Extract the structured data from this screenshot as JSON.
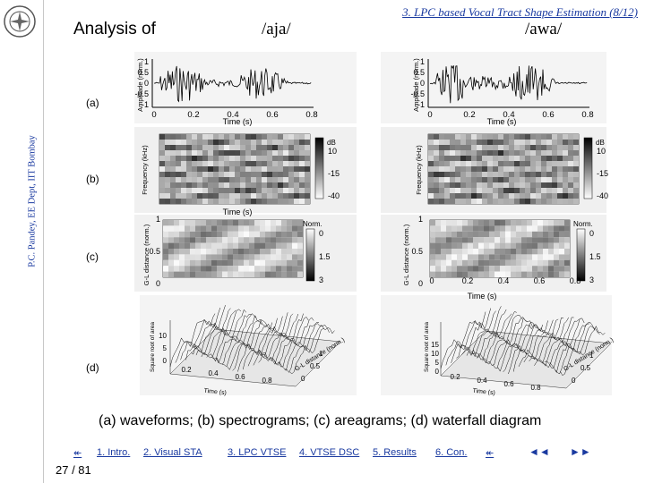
{
  "sidebar": {
    "author_line": "P.C. Pandey, EE Dept, IIT Bombay",
    "logo_icon": "iit-bombay-logo-icon"
  },
  "header": {
    "section_link": "3. LPC based Vocal Tract Shape Estimation (8/12)",
    "title": "Analysis of",
    "col_left": "/aja/",
    "col_right": "/awa/"
  },
  "rows": {
    "a": "(a)",
    "b": "(b)",
    "c": "(c)",
    "d": "(d)"
  },
  "axes": {
    "amp_label": "Amplitude (norm.)",
    "time_label": "Time (s)",
    "freq_label": "Frequency (kHz)",
    "gl_label": "G-L distance (norm.)",
    "db_label": "dB",
    "norm_label": "Norm.",
    "sqrt_area_label": "Square root of area",
    "time_ticks": [
      "0",
      "0.2",
      "0.4",
      "0.6",
      "0.8"
    ],
    "amp_ticks": [
      "1",
      "0.5",
      "0",
      "-0.5",
      "-1"
    ],
    "gl_ticks": [
      "1",
      "0.5",
      "0"
    ],
    "db_ticks": [
      "10",
      "-15",
      "-40"
    ],
    "norm_ticks": [
      "0",
      "1.5",
      "3"
    ],
    "wf_y_ticks_left": [
      "10",
      "5",
      "0"
    ],
    "wf_y_ticks_right": [
      "15",
      "10",
      "5",
      "0"
    ],
    "wf_x_ticks_left": [
      "0.2",
      "0.4",
      "0.6",
      "0.8"
    ],
    "wf_x_ticks_right": [
      "0.2",
      "0.4",
      "0.6",
      "0.8"
    ],
    "wf_depth_ticks": [
      "0",
      "0.5",
      "1"
    ]
  },
  "caption": "(a) waveforms; (b) spectrograms; (c) areagrams; (d) waterfall diagram",
  "nav": {
    "back_left": "↞",
    "items": [
      "1. Intro.",
      "2. Visual STA",
      "3. LPC VTSE",
      "4. VTSE DSC",
      "5. Results",
      "6. Con."
    ],
    "back_right": "↞",
    "prev": "◄◄",
    "next": "►►"
  },
  "page": "27 / 81"
}
